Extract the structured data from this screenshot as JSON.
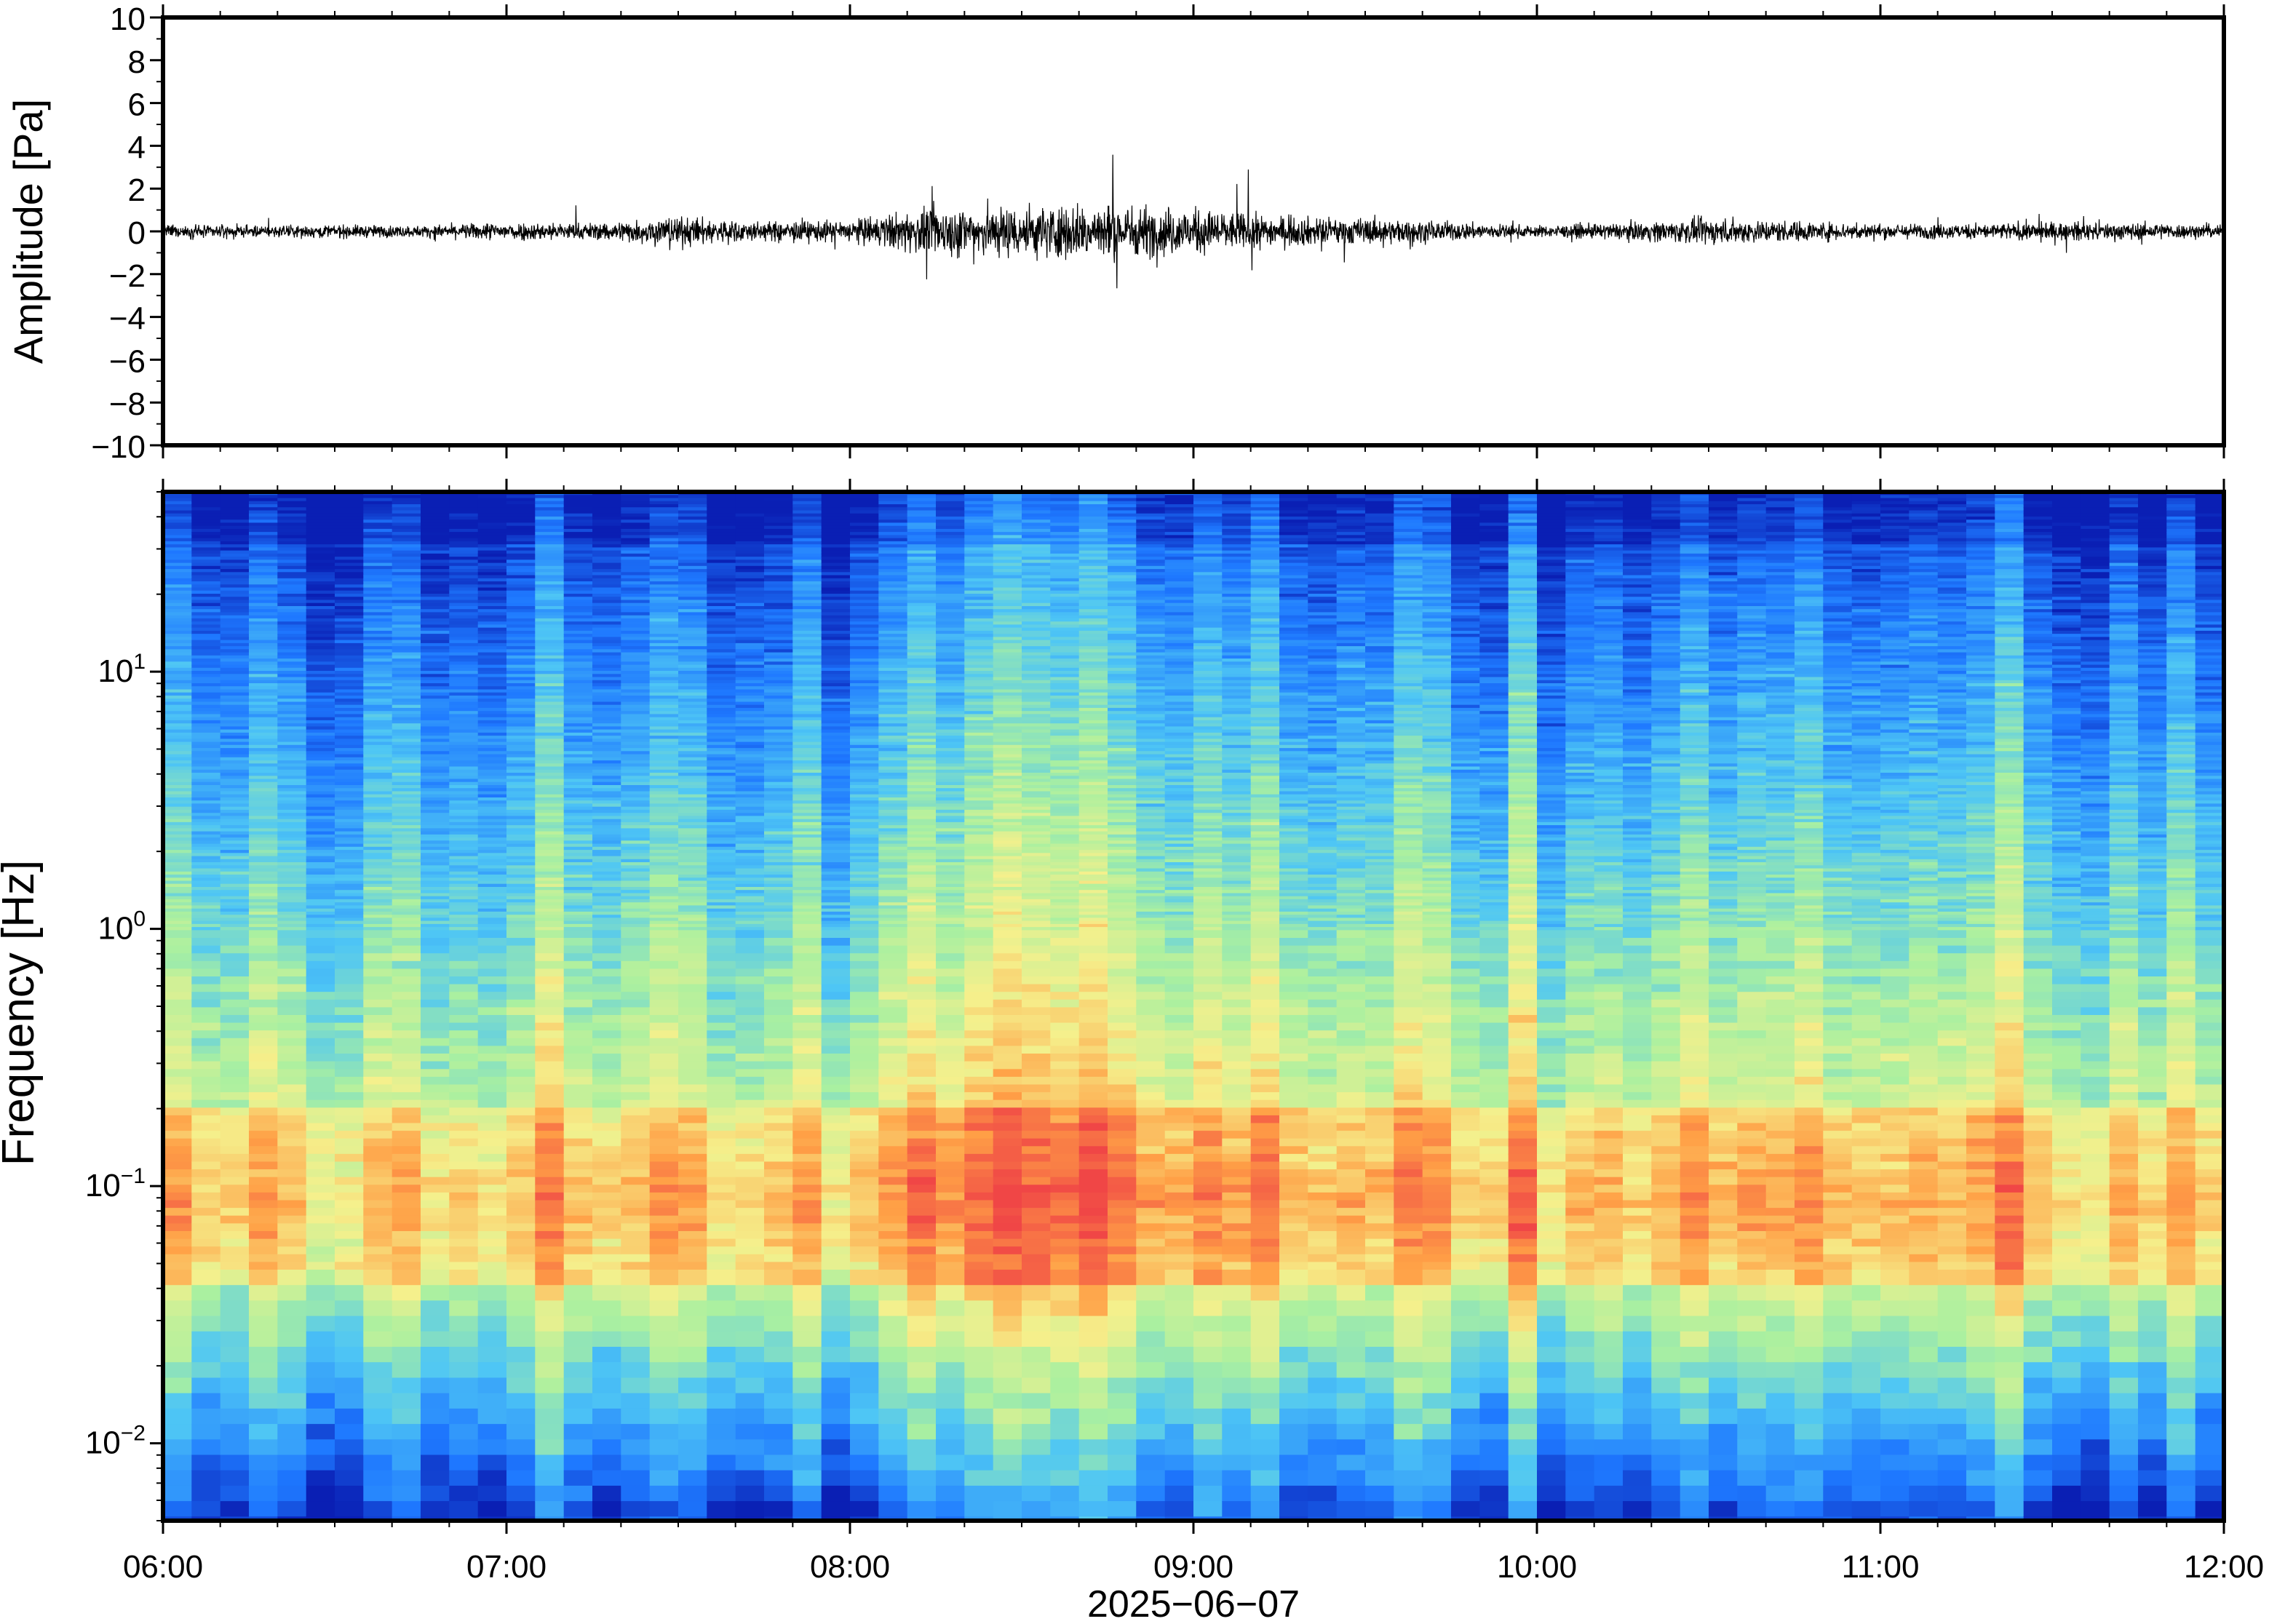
{
  "chart_data": [
    {
      "type": "line",
      "panel": "waveform",
      "ylabel": "Amplitude [Pa]",
      "ylim": [
        -10,
        10
      ],
      "yticks": [
        10,
        8,
        6,
        4,
        2,
        0,
        -2,
        -4,
        -6,
        -8,
        -10
      ],
      "ytick_labels": [
        "10",
        "8",
        "6",
        "4",
        "2",
        "0",
        "−2",
        "−4",
        "−6",
        "−8",
        "−10"
      ],
      "xlim": [
        "06:00",
        "12:00"
      ],
      "grid": false,
      "line_color": "#000000",
      "series": [
        {
          "x": [
            "06:00",
            "06:15",
            "06:30",
            "06:45",
            "07:00",
            "07:15",
            "07:30",
            "07:45",
            "08:00",
            "08:15",
            "08:30",
            "08:45",
            "09:00",
            "09:15",
            "09:30",
            "09:45",
            "10:00",
            "10:15",
            "10:30",
            "10:45",
            "11:00",
            "11:15",
            "11:30",
            "11:45",
            "12:00"
          ],
          "envelope": [
            0.35,
            0.3,
            0.35,
            0.3,
            0.5,
            0.45,
            0.8,
            0.5,
            0.6,
            1.3,
            1.4,
            1.5,
            1.2,
            0.8,
            0.7,
            0.5,
            0.3,
            0.45,
            0.7,
            0.55,
            0.4,
            0.4,
            0.5,
            0.45,
            0.35
          ]
        }
      ]
    },
    {
      "type": "heatmap",
      "panel": "spectrogram",
      "ylabel": "Frequency [Hz]",
      "xlabel": "2025−06−07",
      "yscale": "log",
      "ylim": [
        0.005,
        50
      ],
      "yticks": [
        0.01,
        0.1,
        1,
        10
      ],
      "ytick_base": "10",
      "ytick_exponents": [
        "−2",
        "−1",
        "0",
        "1"
      ],
      "xlim": [
        "06:00",
        "12:00"
      ],
      "xticks": [
        "06:00",
        "07:00",
        "08:00",
        "09:00",
        "10:00",
        "11:00",
        "12:00"
      ],
      "colormap": [
        "#0a1fb4",
        "#1e78ff",
        "#4ec6f5",
        "#aaf0a0",
        "#f5f08c",
        "#ffa046",
        "#f04646"
      ],
      "dominant_band_hz": [
        0.04,
        0.2
      ]
    }
  ]
}
